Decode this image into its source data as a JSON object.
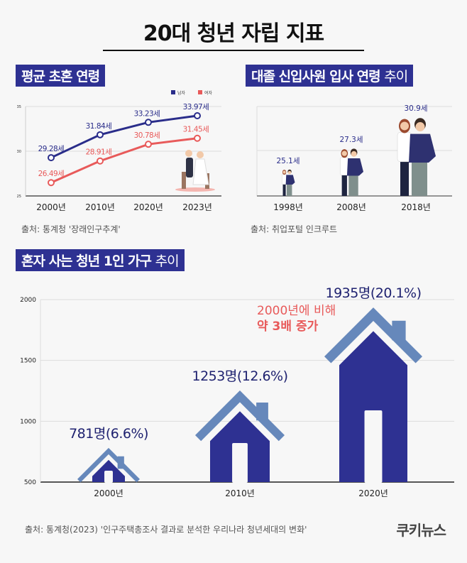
{
  "title": "20대 청년 자립 지표",
  "sections": {
    "marriage": {
      "title": "평균 초혼 연령",
      "source": "출처: 통계청 '장래인구추계'"
    },
    "hiring": {
      "title_bold": "대졸 신입사원 입사 연령",
      "title_light": "추이",
      "source": "출처: 취업포털 인크루트"
    },
    "single": {
      "title_bold": "혼자 사는 청년 1인 가구",
      "title_light": "추이",
      "source": "출처: 통계청(2023)  '인구주택총조사 결과로 분석한 우리나라 청년세대의 변화'",
      "annotation_line1": "2000년에 비해",
      "annotation_line2": "약 3배 증가"
    }
  },
  "logo": "쿠키뉴스",
  "colors": {
    "navy": "#2e3192",
    "red": "#e85a5a",
    "roof": "#6688bb"
  },
  "chart_data": [
    {
      "type": "line",
      "categories": [
        "2000년",
        "2010년",
        "2020년",
        "2023년"
      ],
      "ylim": [
        25,
        35
      ],
      "yticks": [
        "25",
        "30",
        "35"
      ],
      "grid": true,
      "legend": "top-right",
      "series": [
        {
          "name": "남자",
          "values": [
            29.28,
            31.84,
            33.23,
            33.97
          ],
          "labels": [
            "29.28세",
            "31.84세",
            "33.23세",
            "33.97세"
          ],
          "color": "#2a2d8a"
        },
        {
          "name": "여자",
          "values": [
            26.49,
            28.91,
            30.78,
            31.45
          ],
          "labels": [
            "26.49세",
            "28.91세",
            "30.78세",
            "31.45세"
          ],
          "color": "#e85a5a"
        }
      ]
    },
    {
      "type": "bar",
      "categories": [
        "1998년",
        "2008년",
        "2018년"
      ],
      "values": [
        25.1,
        27.3,
        30.9
      ],
      "labels": [
        "25.1세",
        "27.3세",
        "30.9세"
      ],
      "grid": true
    },
    {
      "type": "bar",
      "categories": [
        "2000년",
        "2010년",
        "2020년"
      ],
      "values": [
        781,
        1253,
        1935
      ],
      "labels": [
        "781명(6.6%)",
        "1253명(12.6%)",
        "1935명(20.1%)"
      ],
      "ylim": [
        500,
        2000
      ],
      "yticks": [
        "500",
        "1000",
        "1500",
        "2000"
      ],
      "grid": true
    }
  ]
}
